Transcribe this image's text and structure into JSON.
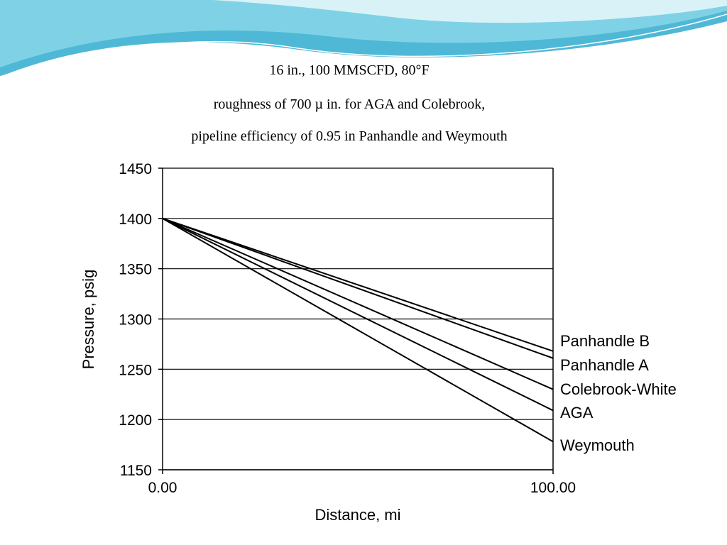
{
  "caption": {
    "line1": "16 in., 100 MMSCFD, 80°F",
    "line2": "roughness of 700 µ in. for AGA and Colebrook,",
    "line3": "pipeline efficiency of 0.95 in Panhandle and Weymouth"
  },
  "colors": {
    "banner_light": "#bfe9f2",
    "banner_mid": "#7fd2e6",
    "banner_dark": "#4fb8d6",
    "line": "#000000",
    "grid": "#000000"
  },
  "chart_data": {
    "type": "line",
    "title": "",
    "xlabel": "Distance, mi",
    "ylabel": "Pressure, psig",
    "xlim": [
      0,
      100
    ],
    "ylim": [
      1150,
      1450
    ],
    "x_ticks": [
      "0.00",
      "100.00"
    ],
    "y_ticks": [
      1150,
      1200,
      1250,
      1300,
      1350,
      1400,
      1450
    ],
    "grid": "horizontal",
    "legend": "right-end labels",
    "x": [
      0,
      100
    ],
    "series": [
      {
        "name": "Panhandle B",
        "values": [
          1400,
          1268
        ]
      },
      {
        "name": "Panhandle A",
        "values": [
          1400,
          1261
        ]
      },
      {
        "name": "Colebrook-White",
        "values": [
          1400,
          1230
        ]
      },
      {
        "name": "AGA",
        "values": [
          1400,
          1209
        ]
      },
      {
        "name": "Weymouth",
        "values": [
          1400,
          1178
        ]
      }
    ]
  }
}
